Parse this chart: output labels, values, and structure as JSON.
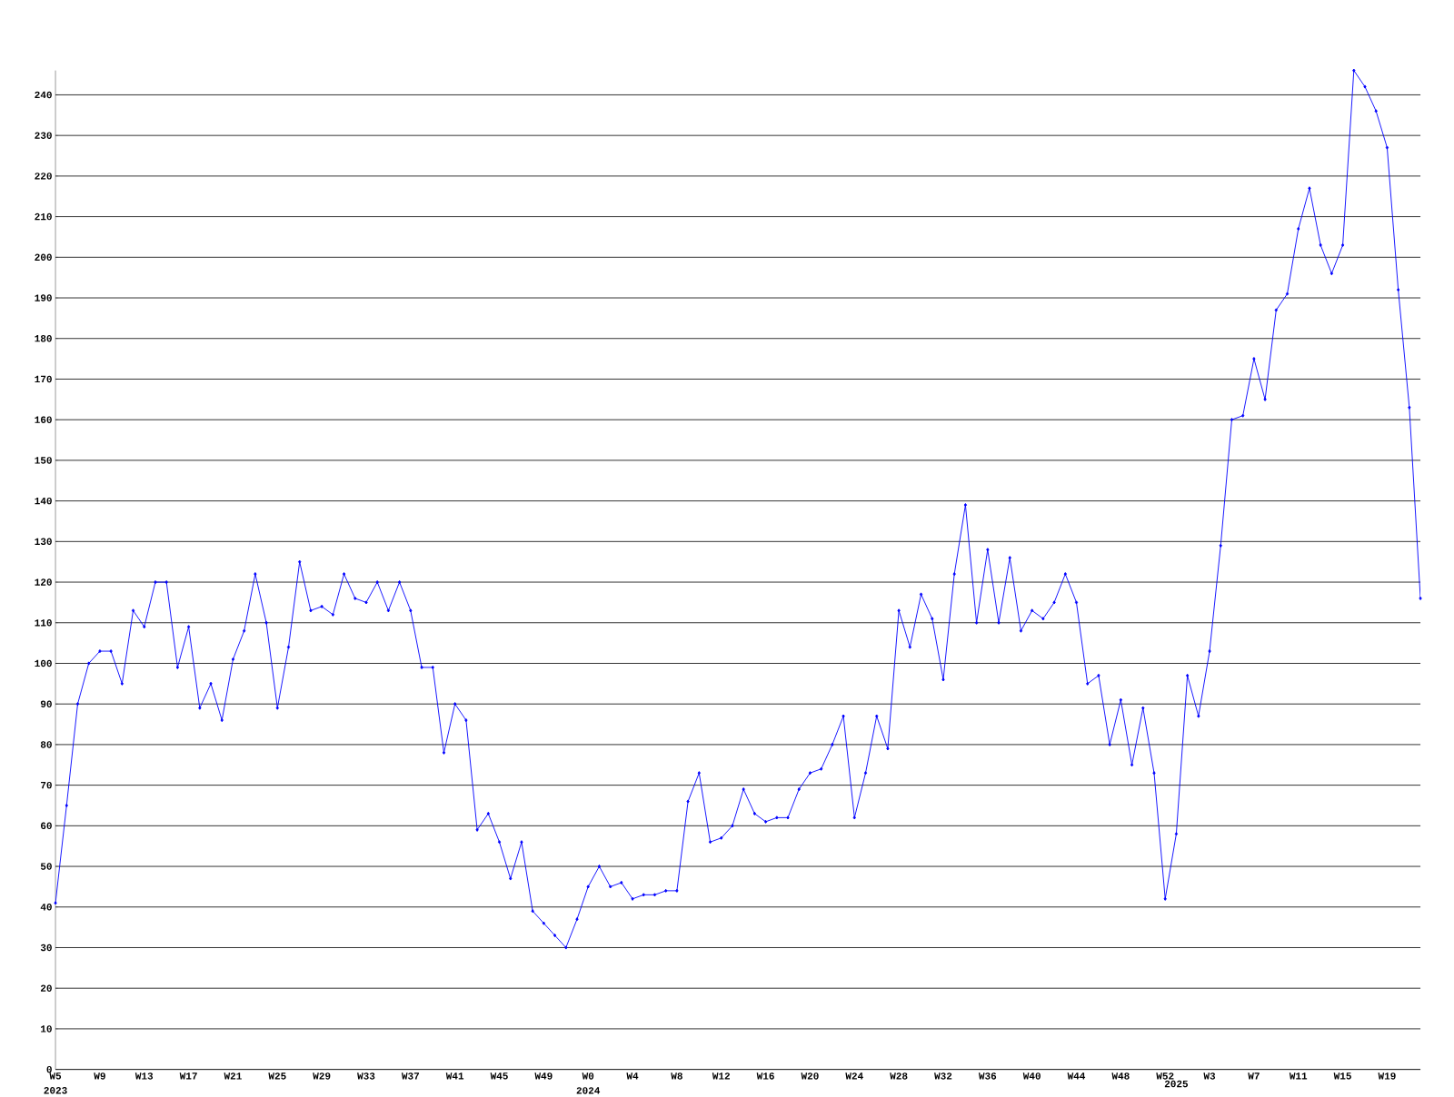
{
  "chart_data": {
    "type": "line",
    "categories": [
      "W5 2023",
      null,
      null,
      null,
      "W9",
      null,
      null,
      null,
      "W13",
      null,
      null,
      null,
      "W17",
      null,
      null,
      null,
      "W21",
      null,
      null,
      null,
      "W25",
      null,
      null,
      null,
      "W29",
      null,
      null,
      null,
      "W33",
      null,
      null,
      null,
      "W37",
      null,
      null,
      null,
      "W41",
      null,
      null,
      null,
      "W45",
      null,
      null,
      null,
      "W49",
      null,
      null,
      null,
      "W0 2024",
      null,
      null,
      null,
      "W4",
      null,
      null,
      null,
      "W8",
      null,
      null,
      null,
      "W12",
      null,
      null,
      null,
      "W16",
      null,
      null,
      null,
      "W20",
      null,
      null,
      null,
      "W24",
      null,
      null,
      null,
      "W28",
      null,
      null,
      null,
      "W32",
      null,
      null,
      null,
      "W36",
      null,
      null,
      null,
      "W40",
      null,
      null,
      null,
      "W44",
      null,
      null,
      null,
      "W48",
      null,
      null,
      null,
      "W52",
      "2025",
      null,
      null,
      "W3",
      null,
      null,
      null,
      "W7",
      null,
      null,
      null,
      "W11",
      null,
      null,
      null,
      "W15",
      null,
      null,
      null,
      "W19",
      null,
      null,
      null
    ],
    "values": [
      41,
      65,
      90,
      100,
      103,
      103,
      95,
      113,
      109,
      120,
      120,
      99,
      109,
      89,
      95,
      86,
      101,
      108,
      122,
      110,
      89,
      104,
      125,
      113,
      114,
      112,
      122,
      116,
      115,
      120,
      113,
      120,
      113,
      99,
      99,
      78,
      90,
      86,
      59,
      63,
      56,
      47,
      56,
      39,
      36,
      33,
      30,
      37,
      45,
      50,
      45,
      46,
      42,
      43,
      43,
      44,
      44,
      66,
      73,
      56,
      57,
      60,
      69,
      63,
      61,
      62,
      62,
      69,
      73,
      74,
      80,
      87,
      62,
      73,
      87,
      79,
      113,
      104,
      117,
      111,
      96,
      122,
      139,
      110,
      128,
      110,
      126,
      108,
      113,
      111,
      115,
      122,
      115,
      95,
      97,
      80,
      91,
      75,
      89,
      73,
      42,
      58,
      97,
      87,
      103,
      129,
      160,
      161,
      175,
      165,
      187,
      191,
      207,
      217,
      203,
      196,
      203,
      246,
      242,
      236,
      227,
      192,
      163,
      116
    ],
    "color": "#0000ff",
    "ylim": [
      0,
      246
    ],
    "yticks": [
      0,
      10,
      20,
      30,
      40,
      50,
      60,
      70,
      80,
      90,
      100,
      110,
      120,
      130,
      140,
      150,
      160,
      170,
      180,
      190,
      200,
      210,
      220,
      230,
      240
    ],
    "grid": "y",
    "marker": "diamond"
  }
}
